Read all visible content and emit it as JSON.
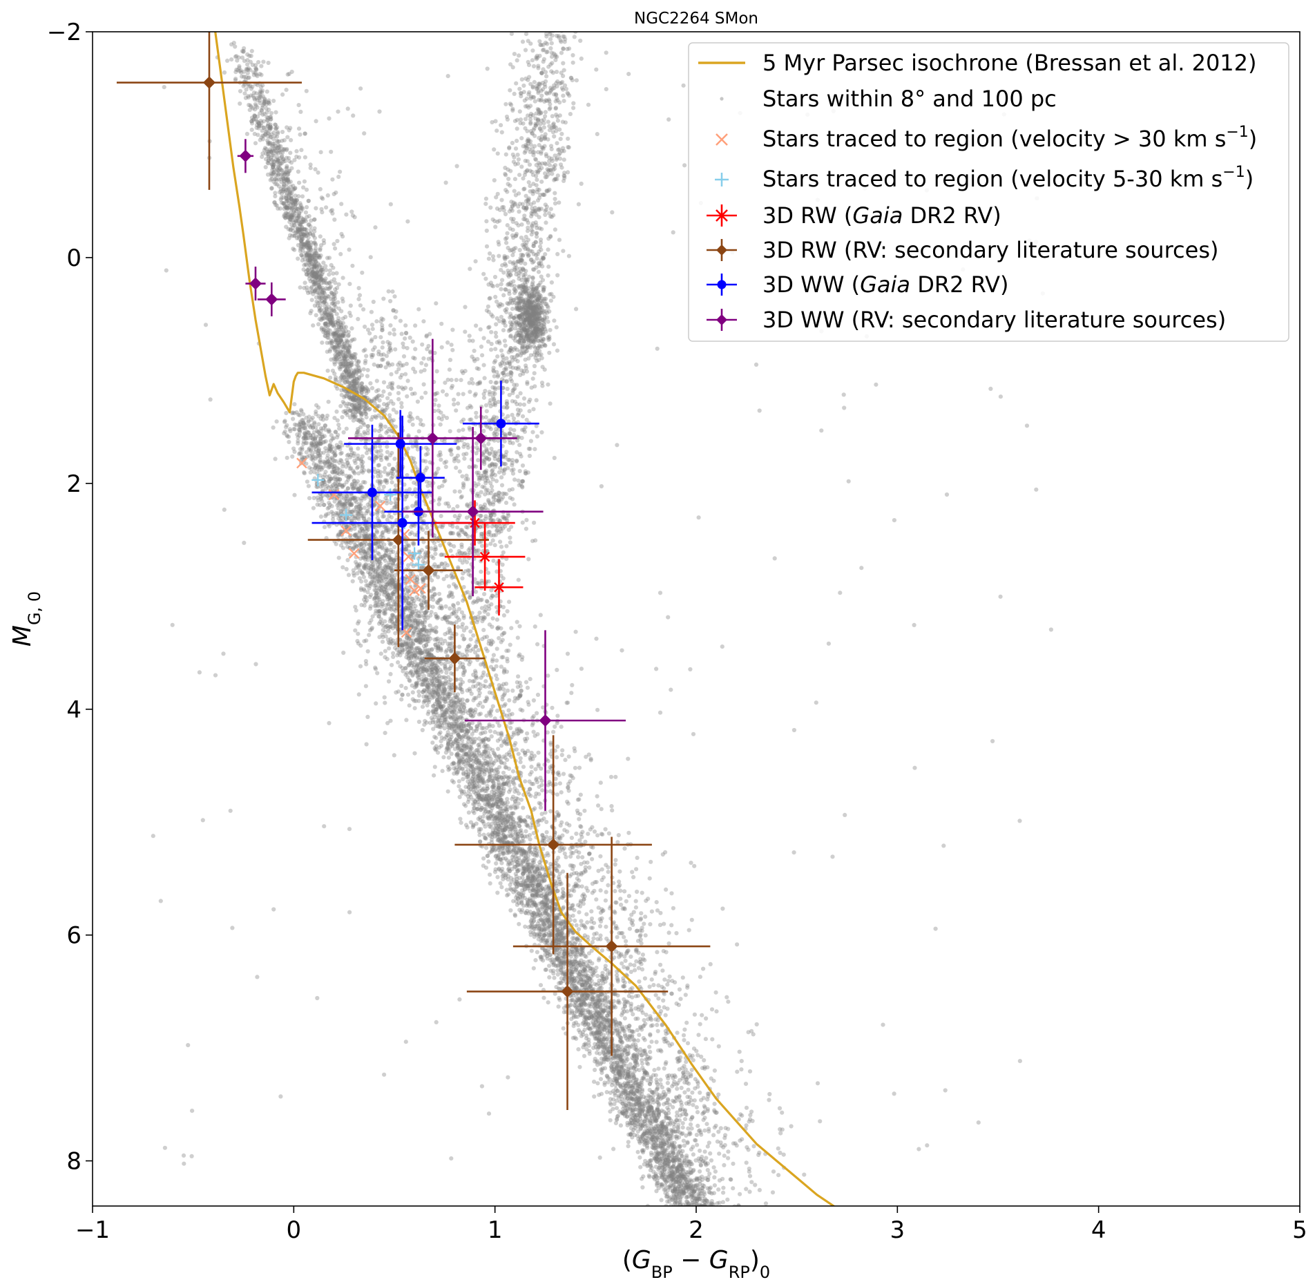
{
  "chart_data": {
    "type": "scatter",
    "title": "NGC2264 SMon",
    "xlabel": {
      "open": "(",
      "g": "G",
      "s1": "BP",
      "minus": " − ",
      "s2": "RP",
      "close": ")",
      "sub": "0"
    },
    "ylabel": {
      "m": "M",
      "sub": "G, 0"
    },
    "xlim": [
      -1,
      5
    ],
    "ylim": [
      8.4,
      -2
    ],
    "x_ticks": [
      {
        "value": -1,
        "label": "−1"
      },
      {
        "value": 0,
        "label": "0"
      },
      {
        "value": 1,
        "label": "1"
      },
      {
        "value": 2,
        "label": "2"
      },
      {
        "value": 3,
        "label": "3"
      },
      {
        "value": 4,
        "label": "4"
      },
      {
        "value": 5,
        "label": "5"
      }
    ],
    "y_ticks": [
      {
        "value": -2,
        "label": "−2"
      },
      {
        "value": 0,
        "label": "0"
      },
      {
        "value": 2,
        "label": "2"
      },
      {
        "value": 4,
        "label": "4"
      },
      {
        "value": 6,
        "label": "6"
      },
      {
        "value": 8,
        "label": "8"
      }
    ],
    "grid": false,
    "legend_position": "upper-right",
    "colors": {
      "isochrone": "#daa520",
      "background": "#808080",
      "fast": "#ffa07a",
      "slow": "#87ceeb",
      "rw_gaia": "#ff0000",
      "rw_lit": "#8b4513",
      "ww_gaia": "#0000ff",
      "ww_lit": "#800080"
    },
    "legend": [
      {
        "key": "isochrone",
        "label": "5 Myr Parsec isochrone (Bressan et al. 2012)"
      },
      {
        "key": "background",
        "label": "Stars within 8° and 100 pc"
      },
      {
        "key": "fast",
        "label": "Stars traced to region (velocity > 30 km s",
        "sup": "−1",
        "tail": ")"
      },
      {
        "key": "slow",
        "label": "Stars traced to region (velocity 5-30 km s",
        "sup": "−1",
        "tail": ")"
      },
      {
        "key": "rw_gaia",
        "label": "3D RW (",
        "italic": "Gaia",
        "tail": " DR2 RV)"
      },
      {
        "key": "rw_lit",
        "label": "3D RW (RV: secondary literature sources)"
      },
      {
        "key": "ww_gaia",
        "label": "3D WW (",
        "italic": "Gaia",
        "tail": " DR2 RV)"
      },
      {
        "key": "ww_lit",
        "label": "3D WW (RV: secondary literature sources)"
      }
    ],
    "isochrone": {
      "name": "5 Myr Parsec isochrone (Bressan et al. 2012)",
      "x": [
        -0.39,
        -0.36,
        -0.33,
        -0.3,
        -0.27,
        -0.25,
        -0.22,
        -0.19,
        -0.16,
        -0.14,
        -0.12,
        -0.1,
        -0.08,
        -0.05,
        -0.02,
        0.0,
        0.01,
        0.02,
        0.05,
        0.15,
        0.25,
        0.35,
        0.45,
        0.52,
        0.58,
        0.63,
        0.7,
        0.78,
        0.86,
        0.93,
        1.0,
        1.07,
        1.12,
        1.18,
        1.22,
        1.28,
        1.33,
        1.4,
        1.48,
        1.58,
        1.7,
        1.85,
        1.98,
        2.1,
        2.2,
        2.3,
        2.4,
        2.5,
        2.6,
        2.7
      ],
      "y": [
        -2.0,
        -1.6,
        -1.2,
        -0.8,
        -0.45,
        -0.2,
        0.2,
        0.55,
        0.85,
        1.05,
        1.22,
        1.12,
        1.2,
        1.28,
        1.37,
        1.1,
        1.05,
        1.02,
        1.02,
        1.07,
        1.15,
        1.25,
        1.4,
        1.58,
        1.8,
        2.05,
        2.35,
        2.7,
        3.05,
        3.45,
        3.85,
        4.25,
        4.6,
        4.9,
        5.2,
        5.55,
        5.8,
        5.97,
        6.1,
        6.25,
        6.45,
        6.8,
        7.15,
        7.45,
        7.65,
        7.85,
        8.0,
        8.15,
        8.3,
        8.42
      ]
    },
    "background_stars": {
      "name": "Stars within 8° and 100 pc",
      "note": "dense field population drawn procedurally along the main sequence, giant branch and red clump"
    },
    "fast_stars": {
      "name": "Stars traced to region (velocity > 30 km s−1)",
      "x": [
        0.04,
        0.2,
        0.26,
        0.3,
        0.43,
        0.55,
        0.57,
        0.6,
        0.63,
        0.58,
        0.56
      ],
      "y": [
        1.82,
        2.1,
        2.42,
        2.62,
        2.2,
        2.45,
        2.65,
        2.95,
        2.93,
        2.85,
        3.32
      ]
    },
    "slow_stars": {
      "name": "Stars traced to region (velocity 5-30 km s−1)",
      "x": [
        0.12,
        0.26,
        0.48,
        0.55,
        0.6,
        0.62
      ],
      "y": [
        1.97,
        2.28,
        2.1,
        2.35,
        2.62,
        2.72
      ]
    },
    "rw_gaia": {
      "name": "3D RW (Gaia DR2 RV)",
      "points": [
        {
          "x": 0.9,
          "y": 2.35,
          "xerr": 0.2,
          "yerr": 0.2
        },
        {
          "x": 0.95,
          "y": 2.65,
          "xerr": 0.2,
          "yerr": 0.3
        },
        {
          "x": 1.02,
          "y": 2.92,
          "xerr": 0.12,
          "yerr": 0.25
        }
      ]
    },
    "rw_lit": {
      "name": "3D RW (RV: secondary literature sources)",
      "points": [
        {
          "x": -0.42,
          "y": -1.55,
          "xerr": 0.46,
          "yerr": 0.95
        },
        {
          "x": 0.52,
          "y": 2.5,
          "xerr": 0.45,
          "yerr": 0.95
        },
        {
          "x": 0.67,
          "y": 2.77,
          "xerr": 0.17,
          "yerr": 0.35
        },
        {
          "x": 0.8,
          "y": 3.55,
          "xerr": 0.15,
          "yerr": 0.3
        },
        {
          "x": 1.29,
          "y": 5.2,
          "xerr": 0.49,
          "yerr": 0.97
        },
        {
          "x": 1.58,
          "y": 6.1,
          "xerr": 0.49,
          "yerr": 0.97
        },
        {
          "x": 1.36,
          "y": 6.5,
          "xerr": 0.5,
          "yerr": 1.05
        }
      ]
    },
    "ww_gaia": {
      "name": "3D WW (Gaia DR2 RV)",
      "points": [
        {
          "x": 1.03,
          "y": 1.47,
          "xerr": 0.19,
          "yerr": 0.38
        },
        {
          "x": 0.53,
          "y": 1.65,
          "xerr": 0.28,
          "yerr": 0.3
        },
        {
          "x": 0.63,
          "y": 1.95,
          "xerr": 0.12,
          "yerr": 0.28
        },
        {
          "x": 0.39,
          "y": 2.08,
          "xerr": 0.3,
          "yerr": 0.6
        },
        {
          "x": 0.62,
          "y": 2.25,
          "xerr": 0.17,
          "yerr": 0.3
        },
        {
          "x": 0.54,
          "y": 2.35,
          "xerr": 0.45,
          "yerr": 0.95
        }
      ]
    },
    "ww_lit": {
      "name": "3D WW (RV: secondary literature sources)",
      "points": [
        {
          "x": -0.24,
          "y": -0.9,
          "xerr": 0.04,
          "yerr": 0.15
        },
        {
          "x": -0.19,
          "y": 0.23,
          "xerr": 0.05,
          "yerr": 0.15
        },
        {
          "x": -0.11,
          "y": 0.37,
          "xerr": 0.07,
          "yerr": 0.15
        },
        {
          "x": 0.69,
          "y": 1.6,
          "xerr": 0.42,
          "yerr": 0.88
        },
        {
          "x": 0.93,
          "y": 1.6,
          "xerr": 0.12,
          "yerr": 0.28
        },
        {
          "x": 0.89,
          "y": 2.25,
          "xerr": 0.35,
          "yerr": 0.75
        },
        {
          "x": 1.25,
          "y": 4.1,
          "xerr": 0.4,
          "yerr": 0.8
        }
      ]
    }
  }
}
